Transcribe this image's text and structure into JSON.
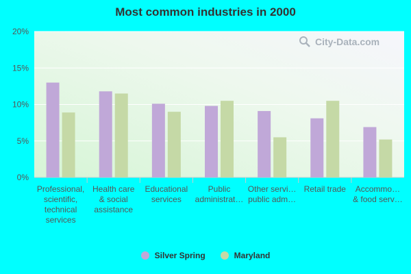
{
  "chart_data": {
    "type": "bar",
    "title": "Most common industries in 2000",
    "categories": [
      [
        "Professional,",
        "scientific,",
        "technical",
        "services"
      ],
      [
        "Health care",
        "& social",
        "assistance"
      ],
      [
        "Educational",
        "services"
      ],
      [
        "Public",
        "administrat…"
      ],
      [
        "Other servi…",
        "public adm…"
      ],
      [
        "Retail trade"
      ],
      [
        "Accommo…",
        "& food serv…"
      ]
    ],
    "series": [
      {
        "name": "Silver Spring",
        "color": "#c0a8d8",
        "values": [
          13.0,
          11.8,
          10.1,
          9.8,
          9.1,
          8.1,
          6.9
        ]
      },
      {
        "name": "Maryland",
        "color": "#c5d9a6",
        "values": [
          8.9,
          11.5,
          9.0,
          10.5,
          5.5,
          10.5,
          5.2
        ]
      }
    ],
    "y_ticks": [
      "0%",
      "5%",
      "10%",
      "15%",
      "20%"
    ],
    "ylim": [
      0,
      20
    ],
    "legend_position": "bottom-center",
    "grid": true
  },
  "watermark": {
    "text": "City-Data.com"
  }
}
